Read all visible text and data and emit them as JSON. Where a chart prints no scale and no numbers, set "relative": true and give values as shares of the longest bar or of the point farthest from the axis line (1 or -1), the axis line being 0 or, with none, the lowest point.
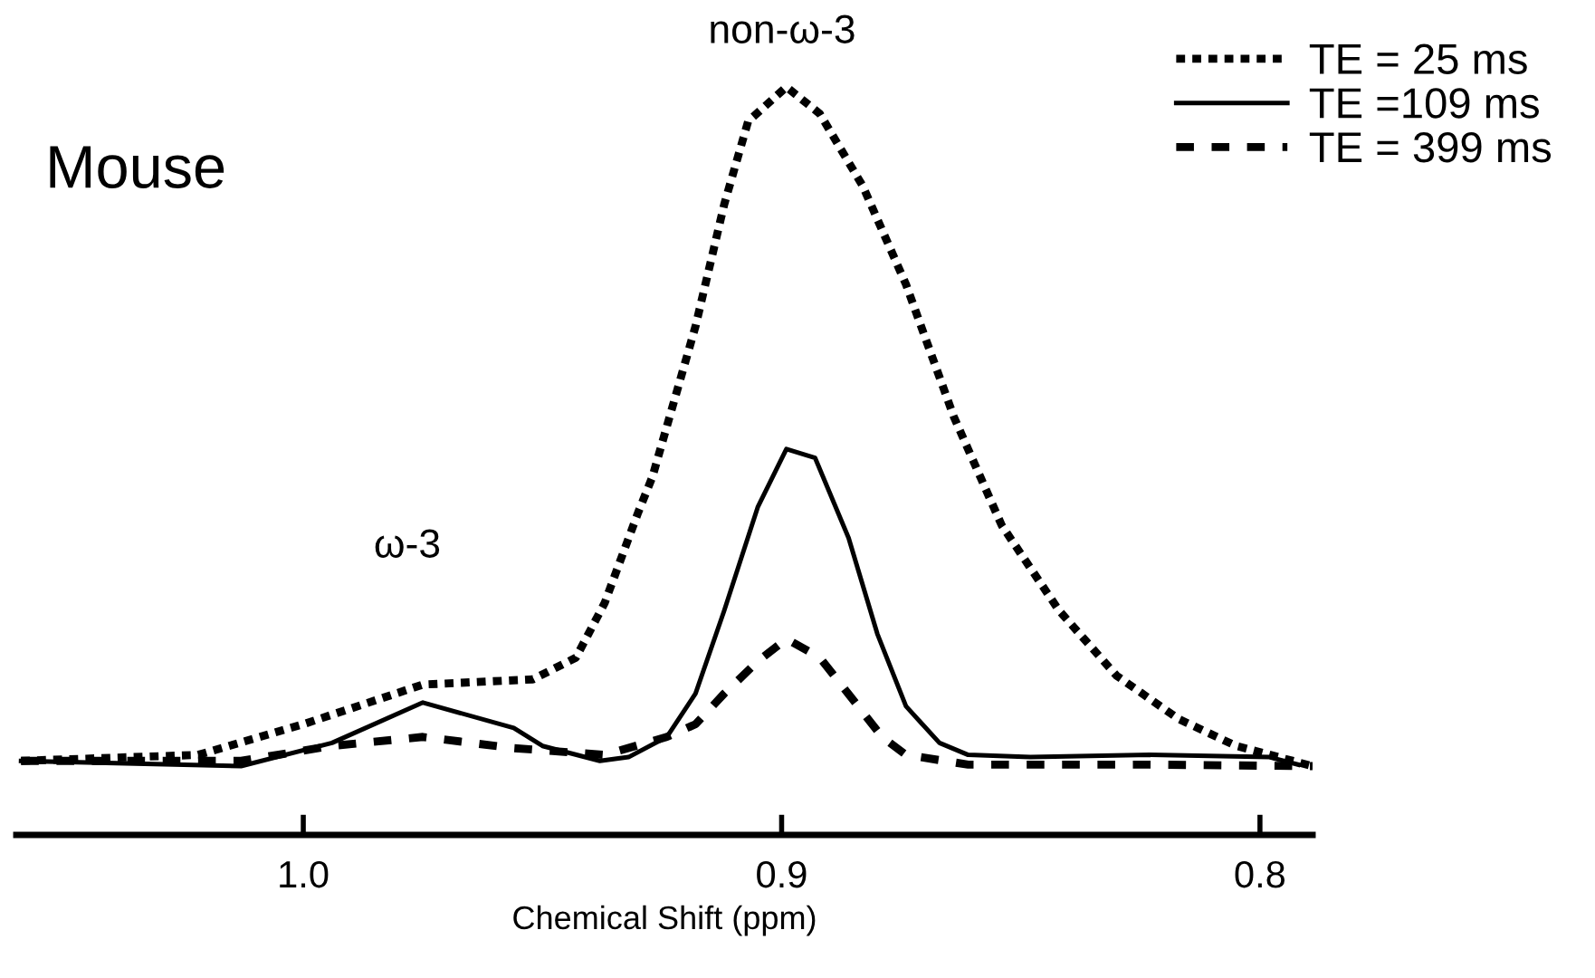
{
  "chart_data": {
    "type": "line",
    "relative": true,
    "xlabel": "Chemical Shift (ppm)",
    "xlim": [
      1.06,
      0.789
    ],
    "xticks": [
      {
        "value": 1.0,
        "label": "1.0"
      },
      0.9,
      0.8
    ],
    "annotations": [
      "Mouse",
      "ω-3",
      "non-ω-3"
    ],
    "legend": "top right",
    "grid": false,
    "series": [
      {
        "name": "TE = 25 ms",
        "color": "#000000",
        "line_style": "dotted",
        "x": [
          1.059,
          1.022,
          1.0,
          0.975,
          0.952,
          0.943,
          0.937,
          0.93,
          0.927,
          0.918,
          0.912,
          0.907,
          0.899,
          0.892,
          0.883,
          0.874,
          0.864,
          0.854,
          0.842,
          0.83,
          0.817,
          0.805,
          0.789
        ],
        "values": [
          0.099,
          0.107,
          0.148,
          0.201,
          0.208,
          0.237,
          0.31,
          0.431,
          0.479,
          0.68,
          0.843,
          0.954,
          1.0,
          0.964,
          0.867,
          0.736,
          0.559,
          0.414,
          0.3,
          0.213,
          0.155,
          0.119,
          0.092
        ]
      },
      {
        "name": "TE =109 ms",
        "color": "#000000",
        "line_style": "solid",
        "x": [
          1.059,
          1.013,
          0.994,
          0.975,
          0.956,
          0.95,
          0.938,
          0.932,
          0.924,
          0.918,
          0.912,
          0.905,
          0.899,
          0.893,
          0.886,
          0.88,
          0.874,
          0.867,
          0.861,
          0.848,
          0.823,
          0.798,
          0.792
        ],
        "values": [
          0.099,
          0.092,
          0.123,
          0.177,
          0.143,
          0.119,
          0.099,
          0.104,
          0.131,
          0.189,
          0.3,
          0.438,
          0.516,
          0.504,
          0.397,
          0.269,
          0.172,
          0.123,
          0.107,
          0.104,
          0.107,
          0.104,
          0.094
        ]
      },
      {
        "name": "TE = 399 ms",
        "color": "#000000",
        "line_style": "dashed",
        "x": [
          1.059,
          1.013,
          0.994,
          0.975,
          0.956,
          0.937,
          0.924,
          0.918,
          0.912,
          0.905,
          0.899,
          0.892,
          0.884,
          0.879,
          0.874,
          0.861,
          0.823,
          0.789
        ],
        "values": [
          0.099,
          0.099,
          0.119,
          0.131,
          0.116,
          0.107,
          0.131,
          0.148,
          0.189,
          0.232,
          0.262,
          0.237,
          0.172,
          0.131,
          0.107,
          0.094,
          0.094,
          0.092
        ]
      }
    ]
  }
}
